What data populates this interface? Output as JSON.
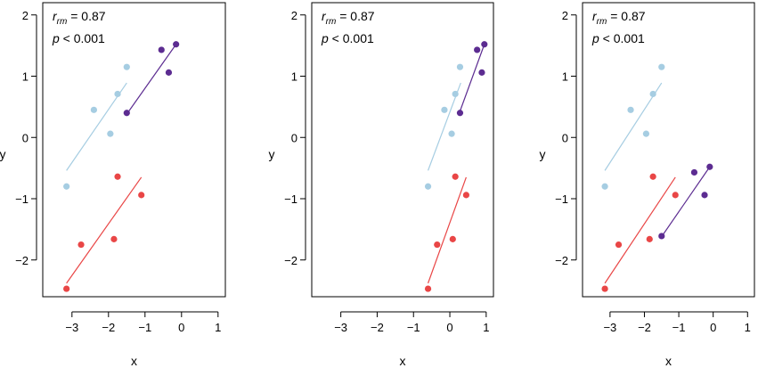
{
  "chart_data": [
    {
      "type": "scatter",
      "xlabel": "x",
      "ylabel": "y",
      "xlim": [
        -3.8,
        1.2
      ],
      "ylim": [
        -2.6,
        2.2
      ],
      "x_ticks": [
        -3,
        -2,
        -1,
        0,
        1
      ],
      "y_ticks": [
        -2,
        -1,
        0,
        1,
        2
      ],
      "x_tick_labels": [
        "−3",
        "−2",
        "−1",
        "0",
        "1"
      ],
      "y_tick_labels": [
        "−2",
        "−1",
        "0",
        "1",
        "2"
      ],
      "grid": false,
      "annotation": {
        "r_main": "r",
        "r_sub": "rm",
        "r_value": " = 0.87",
        "p_text": "p < 0.001"
      },
      "series": [
        {
          "color": "#a6cde2",
          "points": [
            [
              -3.15,
              -0.8
            ],
            [
              -2.4,
              0.45
            ],
            [
              -1.95,
              0.06
            ],
            [
              -1.75,
              0.71
            ],
            [
              -1.5,
              1.15
            ]
          ],
          "fit": [
            [
              -3.15,
              -0.54
            ],
            [
              -1.5,
              0.89
            ]
          ]
        },
        {
          "color": "#e94646",
          "points": [
            [
              -3.15,
              -2.47
            ],
            [
              -2.75,
              -1.75
            ],
            [
              -1.85,
              -1.66
            ],
            [
              -1.75,
              -0.64
            ],
            [
              -1.1,
              -0.94
            ]
          ],
          "fit": [
            [
              -3.15,
              -2.38
            ],
            [
              -1.1,
              -0.65
            ]
          ]
        },
        {
          "color": "#5c2c91",
          "points": [
            [
              -1.5,
              0.4
            ],
            [
              -0.55,
              1.43
            ],
            [
              -0.35,
              1.06
            ],
            [
              -0.15,
              1.52
            ]
          ],
          "fit": [
            [
              -1.5,
              0.38
            ],
            [
              -0.15,
              1.52
            ]
          ]
        }
      ]
    },
    {
      "type": "scatter",
      "xlabel": "x",
      "ylabel": "y",
      "xlim": [
        -3.8,
        1.2
      ],
      "ylim": [
        -2.6,
        2.2
      ],
      "x_ticks": [
        -3,
        -2,
        -1,
        0,
        1
      ],
      "y_ticks": [
        -2,
        -1,
        0,
        1,
        2
      ],
      "x_tick_labels": [
        "−3",
        "−2",
        "−1",
        "0",
        "1"
      ],
      "y_tick_labels": [
        "−2",
        "−1",
        "0",
        "1",
        "2"
      ],
      "grid": false,
      "annotation": {
        "r_main": "r",
        "r_sub": "rm",
        "r_value": " = 0.87",
        "p_text": "p < 0.001"
      },
      "series": [
        {
          "color": "#a6cde2",
          "points": [
            [
              -0.6,
              -0.8
            ],
            [
              -0.15,
              0.45
            ],
            [
              0.05,
              0.06
            ],
            [
              0.15,
              0.71
            ],
            [
              0.28,
              1.15
            ]
          ],
          "fit": [
            [
              -0.6,
              -0.54
            ],
            [
              0.3,
              0.89
            ]
          ]
        },
        {
          "color": "#e94646",
          "points": [
            [
              -0.6,
              -2.47
            ],
            [
              -0.35,
              -1.75
            ],
            [
              0.08,
              -1.66
            ],
            [
              0.15,
              -0.64
            ],
            [
              0.45,
              -0.94
            ]
          ],
          "fit": [
            [
              -0.6,
              -2.38
            ],
            [
              0.45,
              -0.65
            ]
          ]
        },
        {
          "color": "#5c2c91",
          "points": [
            [
              0.28,
              0.4
            ],
            [
              0.75,
              1.43
            ],
            [
              0.88,
              1.06
            ],
            [
              0.95,
              1.52
            ]
          ],
          "fit": [
            [
              0.25,
              0.38
            ],
            [
              0.95,
              1.52
            ]
          ]
        }
      ]
    },
    {
      "type": "scatter",
      "xlabel": "x",
      "ylabel": "y",
      "xlim": [
        -3.8,
        1.2
      ],
      "ylim": [
        -2.6,
        2.2
      ],
      "x_ticks": [
        -3,
        -2,
        -1,
        0,
        1
      ],
      "y_ticks": [
        -2,
        -1,
        0,
        1,
        2
      ],
      "x_tick_labels": [
        "−3",
        "−2",
        "−1",
        "0",
        "1"
      ],
      "y_tick_labels": [
        "−2",
        "−1",
        "0",
        "1",
        "2"
      ],
      "grid": false,
      "annotation": {
        "r_main": "r",
        "r_sub": "rm",
        "r_value": " = 0.87",
        "p_text": "p < 0.001"
      },
      "series": [
        {
          "color": "#a6cde2",
          "points": [
            [
              -3.15,
              -0.8
            ],
            [
              -2.4,
              0.45
            ],
            [
              -1.95,
              0.06
            ],
            [
              -1.75,
              0.71
            ],
            [
              -1.5,
              1.15
            ]
          ],
          "fit": [
            [
              -3.15,
              -0.54
            ],
            [
              -1.5,
              0.89
            ]
          ]
        },
        {
          "color": "#e94646",
          "points": [
            [
              -3.15,
              -2.47
            ],
            [
              -2.75,
              -1.75
            ],
            [
              -1.85,
              -1.66
            ],
            [
              -1.75,
              -0.64
            ],
            [
              -1.1,
              -0.94
            ]
          ],
          "fit": [
            [
              -3.15,
              -2.38
            ],
            [
              -1.1,
              -0.65
            ]
          ]
        },
        {
          "color": "#5c2c91",
          "points": [
            [
              -1.5,
              -1.61
            ],
            [
              -0.55,
              -0.57
            ],
            [
              -0.25,
              -0.94
            ],
            [
              -0.1,
              -0.48
            ]
          ],
          "fit": [
            [
              -1.5,
              -1.62
            ],
            [
              -0.1,
              -0.48
            ]
          ]
        }
      ]
    }
  ]
}
